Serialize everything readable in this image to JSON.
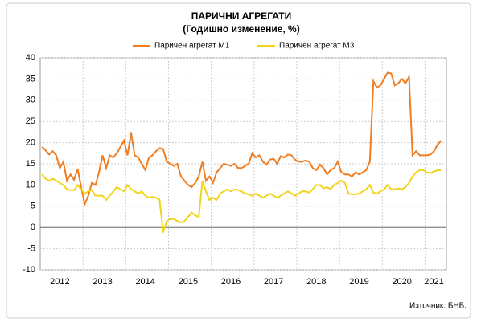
{
  "chart_data": {
    "type": "line",
    "title": "ПАРИЧНИ АГРЕГАТИ",
    "subtitle": "(Годишно изменение, %)",
    "source": "Източник: БНБ.",
    "categories": [
      null,
      null,
      null,
      null,
      null,
      "2012",
      null,
      null,
      null,
      null,
      null,
      null,
      null,
      null,
      null,
      null,
      null,
      "2013",
      null,
      null,
      null,
      null,
      null,
      null,
      null,
      null,
      null,
      null,
      null,
      "2014",
      null,
      null,
      null,
      null,
      null,
      null,
      null,
      null,
      null,
      null,
      null,
      "2015",
      null,
      null,
      null,
      null,
      null,
      null,
      null,
      null,
      null,
      null,
      null,
      "2016",
      null,
      null,
      null,
      null,
      null,
      null,
      null,
      null,
      null,
      null,
      null,
      "2017",
      null,
      null,
      null,
      null,
      null,
      null,
      null,
      null,
      null,
      null,
      null,
      "2018",
      null,
      null,
      null,
      null,
      null,
      null,
      null,
      null,
      null,
      null,
      null,
      "2019",
      null,
      null,
      null,
      null,
      null,
      null,
      null,
      null,
      null,
      null,
      null,
      "2020",
      null,
      null,
      null,
      null,
      null,
      null,
      null,
      null,
      "2021",
      null,
      null
    ],
    "series": [
      {
        "name": "Паричен агрегат М1",
        "color": "#f07d21",
        "values": [
          19,
          18.2,
          17.2,
          18,
          17,
          14,
          15.5,
          11,
          12.5,
          11.2,
          13.8,
          9.5,
          5.5,
          7.5,
          10.5,
          10,
          13,
          17,
          14,
          17,
          16.5,
          17.5,
          19,
          20.5,
          17,
          22.3,
          17,
          16.5,
          15,
          13.5,
          16.5,
          17,
          18,
          18.7,
          18.5,
          15.5,
          15,
          14.5,
          15,
          12,
          11,
          10,
          9.5,
          10.5,
          12,
          15.5,
          11,
          12,
          10.5,
          13,
          14,
          15,
          14.8,
          14.5,
          15,
          14,
          14,
          14.5,
          15,
          17.5,
          16.5,
          17,
          15.5,
          14.8,
          16,
          16.2,
          15,
          16.8,
          16.5,
          17.2,
          17,
          16,
          15.5,
          15.5,
          15.8,
          15.5,
          14,
          13.5,
          14.8,
          14,
          12.5,
          13.5,
          14,
          15.5,
          13,
          12.5,
          12.5,
          12,
          13,
          12.5,
          13,
          13.5,
          15.5,
          34.5,
          33,
          33.5,
          35,
          36.5,
          36.3,
          33.5,
          34,
          35,
          34,
          35.5,
          17,
          18,
          17,
          17,
          17,
          17.2,
          18,
          19.5,
          20.5
        ]
      },
      {
        "name": "Паричен агрегат М3",
        "color": "#f2d41c",
        "values": [
          12.5,
          11.5,
          11,
          11.5,
          11,
          10.5,
          10,
          9,
          8.8,
          8.8,
          10,
          9,
          8,
          8.5,
          8.8,
          7.5,
          7.5,
          7.5,
          6.5,
          7.5,
          8.5,
          9.5,
          9,
          8.5,
          10,
          9,
          8.5,
          8,
          8.5,
          7.5,
          7,
          7.2,
          7,
          6.5,
          -1.2,
          1.5,
          2,
          2,
          1.5,
          1.2,
          1.5,
          2.5,
          3.5,
          2.8,
          2.5,
          11,
          8.5,
          6.5,
          7,
          6.5,
          8,
          8.5,
          9,
          8.5,
          9,
          8.8,
          8.5,
          8,
          7.8,
          7.5,
          8,
          7.5,
          7,
          7.5,
          8,
          7.5,
          7,
          7.5,
          8,
          8.5,
          8,
          7.5,
          8,
          8.5,
          8.5,
          8.2,
          9,
          10,
          10,
          9.2,
          9.5,
          9,
          10,
          10.5,
          11,
          10.5,
          8,
          7.8,
          7.8,
          8,
          8.5,
          9,
          10,
          8.2,
          8,
          8.5,
          9,
          10,
          9,
          9,
          9.2,
          9,
          9.5,
          10.5,
          12,
          13,
          13.5,
          13.5,
          13,
          12.8,
          13.2,
          13.5,
          13.5
        ]
      }
    ],
    "ylim": [
      -10,
      40
    ],
    "yticks": [
      -10,
      -5,
      0,
      5,
      10,
      15,
      20,
      25,
      30,
      35,
      40
    ],
    "grid": true,
    "legend": "top"
  }
}
